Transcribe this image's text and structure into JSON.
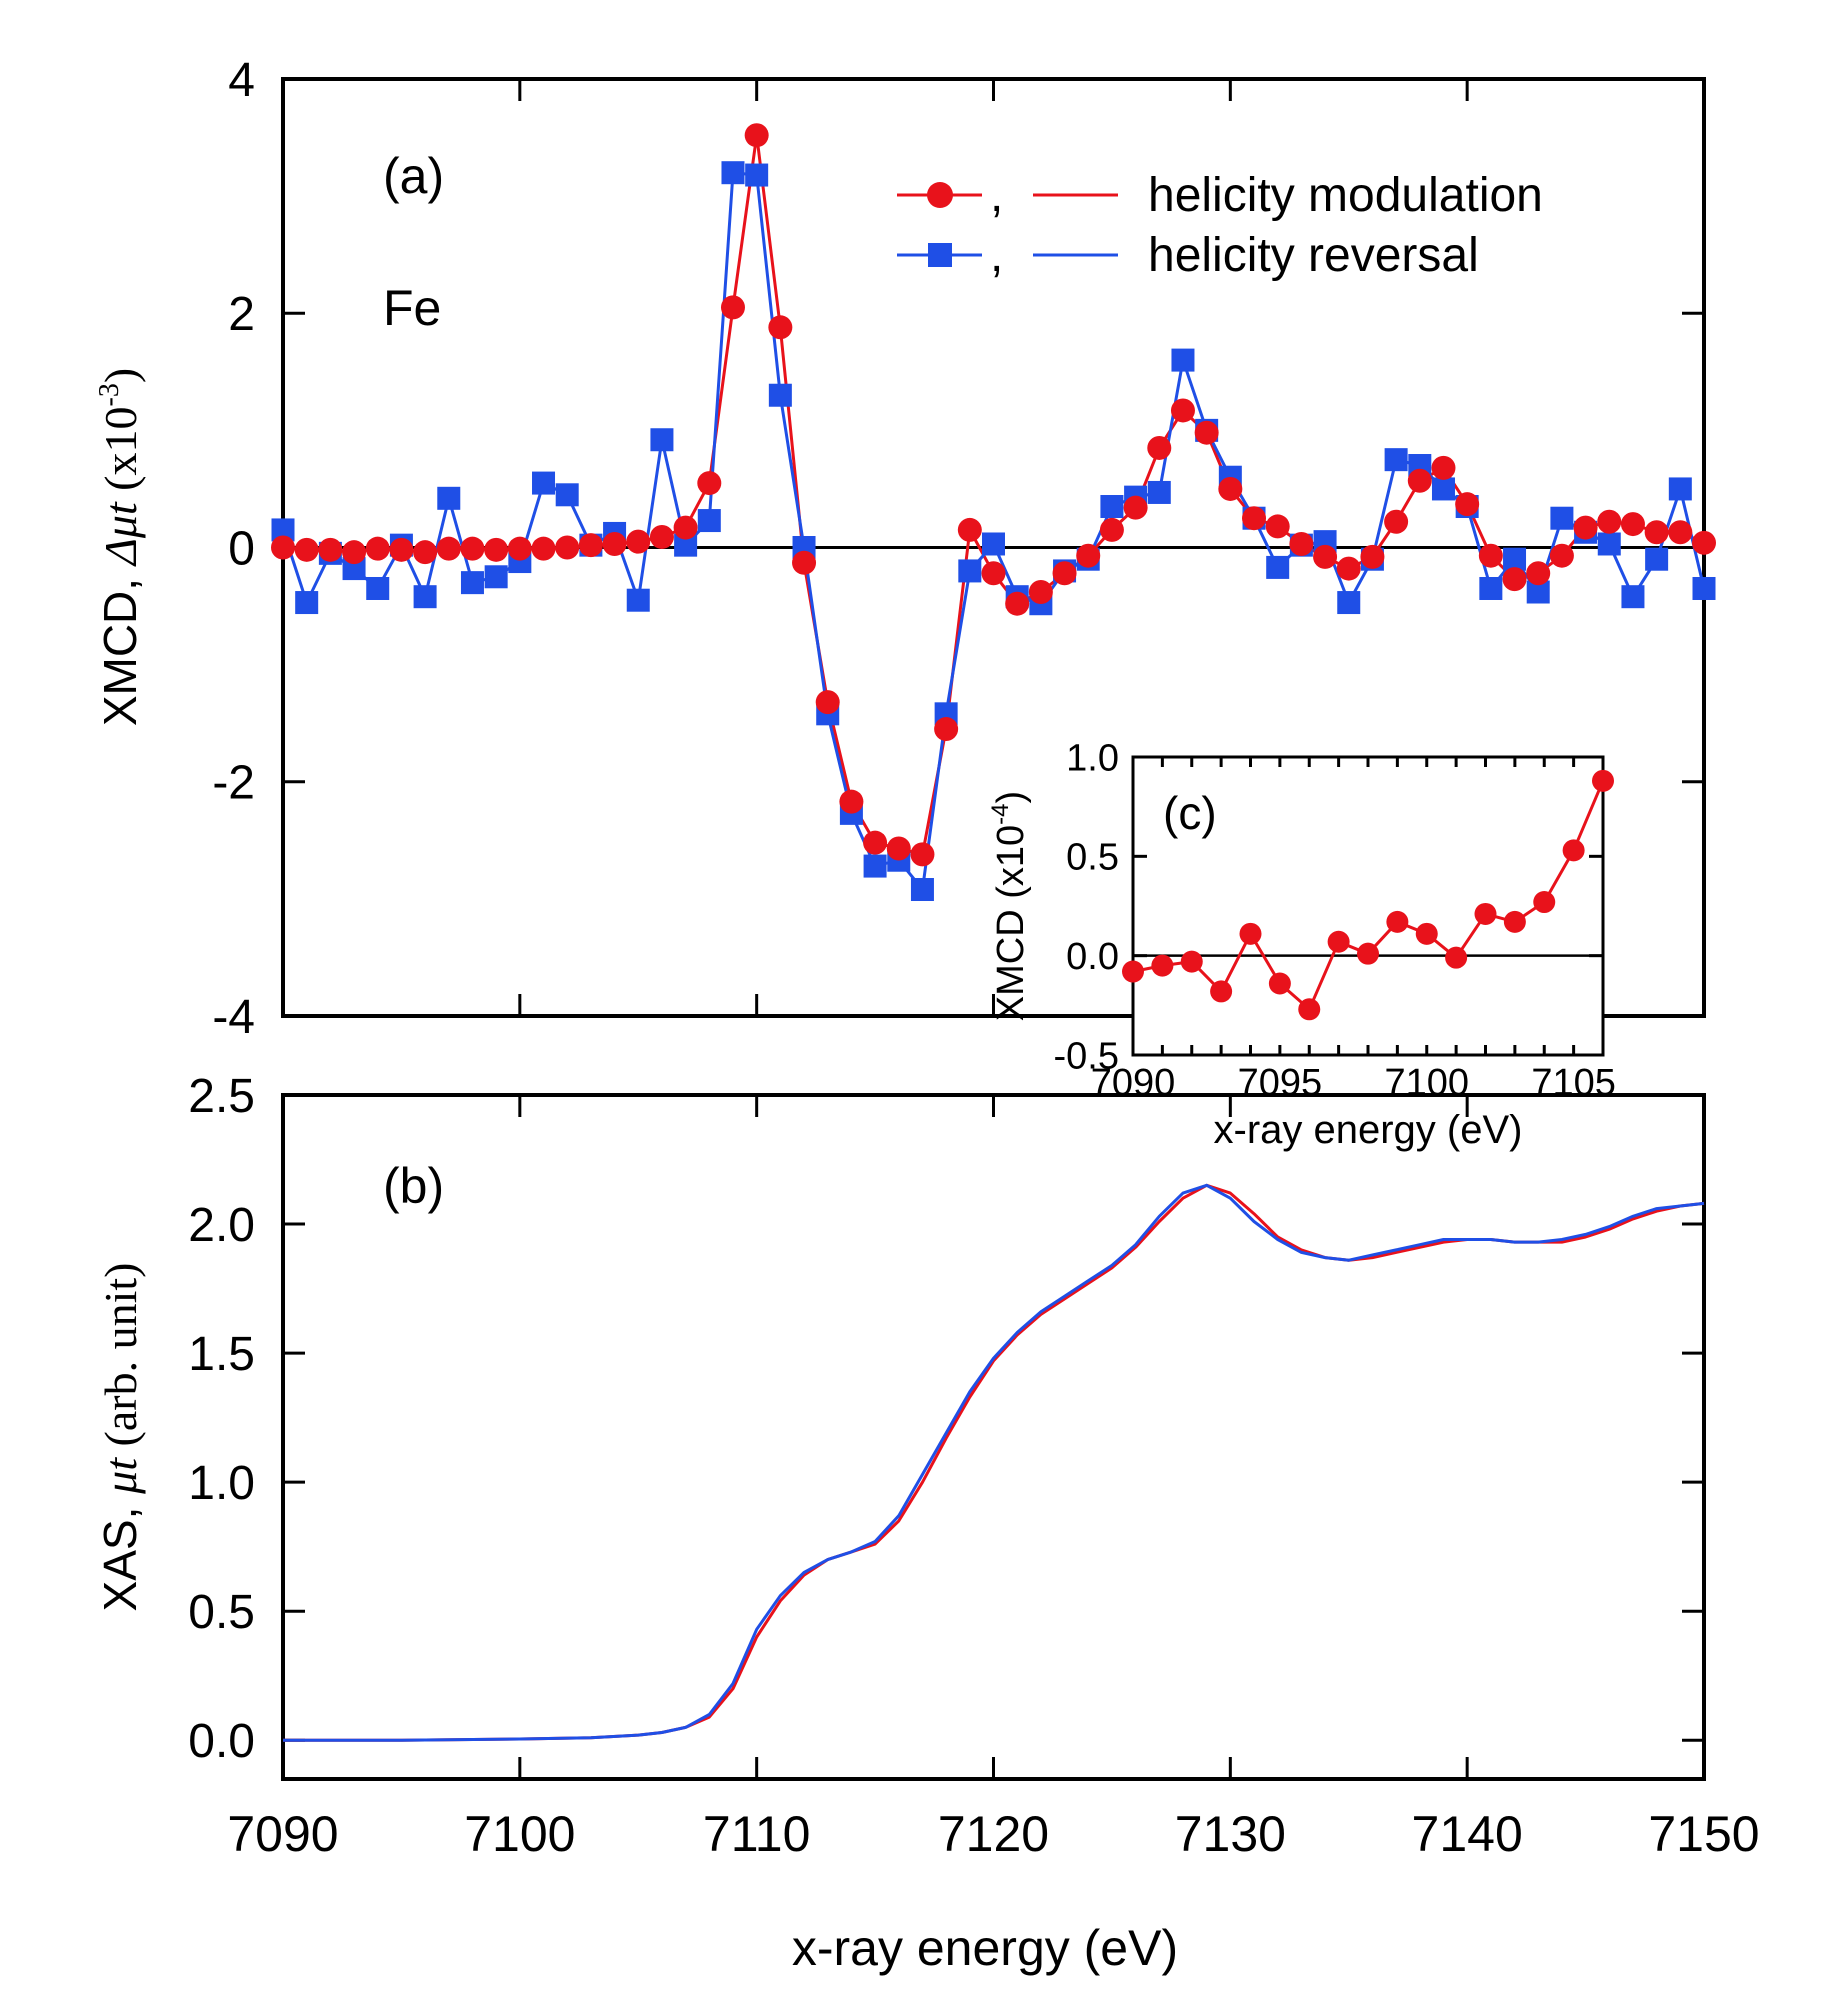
{
  "colors": {
    "modulation": "#e8121b",
    "reversal": "#1f4fe6",
    "axis": "#000000"
  },
  "chart_data": [
    {
      "id": "a",
      "type": "line",
      "panel_label": "(a)",
      "element_label": "Fe",
      "ylabel_prefix": "XMCD, ",
      "ylabel_symbol": "Δμt",
      "ylabel_unit_open": " (x10",
      "ylabel_exponent": "-3",
      "ylabel_unit_close": ")",
      "xlim": [
        7090,
        7150
      ],
      "ylim": [
        -4,
        4
      ],
      "yticks": [
        -4,
        -2,
        0,
        2,
        4
      ],
      "ytick_labels": [
        "-4",
        "-2",
        "0",
        "2",
        "4"
      ],
      "legend": {
        "position": "top-right",
        "entries": [
          {
            "key": "modulation",
            "separator": ",",
            "text": "helicity modulation",
            "marker": "circle"
          },
          {
            "key": "reversal",
            "separator": ",",
            "text": "helicity reversal",
            "marker": "square"
          }
        ]
      },
      "series": [
        {
          "name": "helicity modulation",
          "key": "modulation",
          "marker": "circle",
          "x": [
            7090,
            7091,
            7092,
            7093,
            7094,
            7095,
            7096,
            7097,
            7098,
            7099,
            7100,
            7101,
            7102,
            7103,
            7104,
            7105,
            7106,
            7107,
            7108,
            7109,
            7110,
            7111,
            7112,
            7113,
            7114,
            7115,
            7116,
            7117,
            7118,
            7119,
            7120,
            7121,
            7122,
            7123,
            7124,
            7125,
            7126,
            7127,
            7128,
            7129,
            7130,
            7131,
            7132,
            7133,
            7134,
            7135,
            7136,
            7137,
            7138,
            7139,
            7140,
            7141,
            7142,
            7143,
            7144,
            7145,
            7146,
            7147,
            7148,
            7149,
            7150
          ],
          "y": [
            0.0,
            -0.02,
            -0.02,
            -0.04,
            -0.01,
            -0.02,
            -0.04,
            -0.01,
            -0.01,
            -0.02,
            -0.01,
            -0.01,
            0.0,
            0.02,
            0.03,
            0.05,
            0.09,
            0.17,
            0.55,
            2.05,
            3.52,
            1.88,
            -0.13,
            -1.32,
            -2.17,
            -2.52,
            -2.57,
            -2.62,
            -1.55,
            0.15,
            -0.22,
            -0.48,
            -0.38,
            -0.22,
            -0.07,
            0.15,
            0.34,
            0.85,
            1.17,
            0.98,
            0.5,
            0.25,
            0.18,
            0.03,
            -0.08,
            -0.18,
            -0.08,
            0.22,
            0.57,
            0.68,
            0.37,
            -0.07,
            -0.27,
            -0.22,
            -0.07,
            0.17,
            0.22,
            0.2,
            0.13,
            0.13,
            0.04
          ]
        },
        {
          "name": "helicity reversal",
          "key": "reversal",
          "marker": "square",
          "x": [
            7090,
            7091,
            7092,
            7093,
            7094,
            7095,
            7096,
            7097,
            7098,
            7099,
            7100,
            7101,
            7102,
            7103,
            7104,
            7105,
            7106,
            7107,
            7108,
            7109,
            7110,
            7111,
            7112,
            7113,
            7114,
            7115,
            7116,
            7117,
            7118,
            7119,
            7120,
            7121,
            7122,
            7123,
            7124,
            7125,
            7126,
            7127,
            7128,
            7129,
            7130,
            7131,
            7132,
            7133,
            7134,
            7135,
            7136,
            7137,
            7138,
            7139,
            7140,
            7141,
            7142,
            7143,
            7144,
            7145,
            7146,
            7147,
            7148,
            7149,
            7150
          ],
          "y": [
            0.15,
            -0.47,
            -0.05,
            -0.18,
            -0.35,
            0.02,
            -0.42,
            0.42,
            -0.3,
            -0.25,
            -0.12,
            0.55,
            0.45,
            0.02,
            0.12,
            -0.45,
            0.92,
            0.02,
            0.23,
            3.2,
            3.18,
            1.3,
            0.0,
            -1.42,
            -2.27,
            -2.72,
            -2.67,
            -2.92,
            -1.42,
            -0.2,
            0.03,
            -0.42,
            -0.48,
            -0.2,
            -0.1,
            0.35,
            0.43,
            0.47,
            1.6,
            1.0,
            0.6,
            0.25,
            -0.17,
            0.02,
            0.05,
            -0.47,
            -0.1,
            0.75,
            0.7,
            0.5,
            0.35,
            -0.35,
            -0.1,
            -0.38,
            0.25,
            0.13,
            0.03,
            -0.42,
            -0.1,
            0.5,
            -0.35
          ]
        }
      ]
    },
    {
      "id": "b",
      "type": "line",
      "panel_label": "(b)",
      "ylabel_prefix": "XAS, ",
      "ylabel_symbol": "μt",
      "ylabel_unit_open": " (arb. unit)",
      "xlabel": "x-ray energy (eV)",
      "xlim": [
        7090,
        7150
      ],
      "ylim": [
        -0.15,
        2.5
      ],
      "xticks": [
        7090,
        7100,
        7110,
        7120,
        7130,
        7140,
        7150
      ],
      "xtick_labels": [
        "7090",
        "7100",
        "7110",
        "7120",
        "7130",
        "7140",
        "7150"
      ],
      "yticks": [
        0.0,
        0.5,
        1.0,
        1.5,
        2.0,
        2.5
      ],
      "ytick_labels": [
        "0.0",
        "0.5",
        "1.0",
        "1.5",
        "2.0",
        "2.5"
      ],
      "series": [
        {
          "name": "helicity modulation",
          "key": "modulation",
          "x": [
            7090,
            7095,
            7100,
            7103,
            7105,
            7106,
            7107,
            7108,
            7109,
            7110,
            7111,
            7112,
            7113,
            7114,
            7115,
            7116,
            7117,
            7118,
            7119,
            7120,
            7121,
            7122,
            7123,
            7124,
            7125,
            7126,
            7127,
            7128,
            7129,
            7130,
            7131,
            7132,
            7133,
            7134,
            7135,
            7136,
            7137,
            7138,
            7139,
            7140,
            7141,
            7142,
            7143,
            7144,
            7145,
            7146,
            7147,
            7148,
            7149,
            7150
          ],
          "y": [
            0.0,
            0.0,
            0.005,
            0.01,
            0.02,
            0.03,
            0.05,
            0.09,
            0.2,
            0.4,
            0.54,
            0.64,
            0.7,
            0.73,
            0.76,
            0.85,
            1.0,
            1.17,
            1.33,
            1.47,
            1.57,
            1.65,
            1.71,
            1.77,
            1.83,
            1.91,
            2.01,
            2.1,
            2.15,
            2.12,
            2.04,
            1.95,
            1.9,
            1.87,
            1.86,
            1.87,
            1.89,
            1.91,
            1.93,
            1.94,
            1.94,
            1.93,
            1.93,
            1.93,
            1.95,
            1.98,
            2.02,
            2.05,
            2.07,
            2.08
          ]
        },
        {
          "name": "helicity reversal",
          "key": "reversal",
          "x": [
            7090,
            7095,
            7100,
            7103,
            7105,
            7106,
            7107,
            7108,
            7109,
            7110,
            7111,
            7112,
            7113,
            7114,
            7115,
            7116,
            7117,
            7118,
            7119,
            7120,
            7121,
            7122,
            7123,
            7124,
            7125,
            7126,
            7127,
            7128,
            7129,
            7130,
            7131,
            7132,
            7133,
            7134,
            7135,
            7136,
            7137,
            7138,
            7139,
            7140,
            7141,
            7142,
            7143,
            7144,
            7145,
            7146,
            7147,
            7148,
            7149,
            7150
          ],
          "y": [
            0.0,
            0.0,
            0.005,
            0.01,
            0.02,
            0.03,
            0.05,
            0.1,
            0.22,
            0.43,
            0.56,
            0.65,
            0.7,
            0.73,
            0.77,
            0.87,
            1.03,
            1.19,
            1.35,
            1.48,
            1.58,
            1.66,
            1.72,
            1.78,
            1.84,
            1.92,
            2.03,
            2.12,
            2.15,
            2.1,
            2.01,
            1.94,
            1.89,
            1.87,
            1.86,
            1.88,
            1.9,
            1.92,
            1.94,
            1.94,
            1.94,
            1.93,
            1.93,
            1.94,
            1.96,
            1.99,
            2.03,
            2.06,
            2.07,
            2.08
          ]
        }
      ]
    },
    {
      "id": "c",
      "type": "line",
      "panel_label": "(c)",
      "ylabel_prefix": "XMCD (x10",
      "ylabel_exponent": "-4",
      "ylabel_unit_close": ")",
      "xlabel": "x-ray energy (eV)",
      "xlim": [
        7090,
        7106
      ],
      "ylim": [
        -0.5,
        1.0
      ],
      "xticks": [
        7090,
        7095,
        7100,
        7105
      ],
      "xtick_labels": [
        "7090",
        "7095",
        "7100",
        "7105"
      ],
      "yticks": [
        -0.5,
        0.0,
        0.5,
        1.0
      ],
      "ytick_labels": [
        "-0.5",
        "0.0",
        "0.5",
        "1.0"
      ],
      "series": [
        {
          "name": "helicity modulation",
          "key": "modulation",
          "marker": "circle",
          "x": [
            7090,
            7091,
            7092,
            7093,
            7094,
            7095,
            7096,
            7097,
            7098,
            7099,
            7100,
            7101,
            7102,
            7103,
            7104,
            7105,
            7106
          ],
          "y": [
            -0.08,
            -0.05,
            -0.03,
            -0.18,
            0.11,
            -0.14,
            -0.27,
            0.07,
            0.01,
            0.17,
            0.11,
            -0.01,
            0.21,
            0.17,
            0.27,
            0.53,
            0.88
          ]
        }
      ]
    }
  ]
}
